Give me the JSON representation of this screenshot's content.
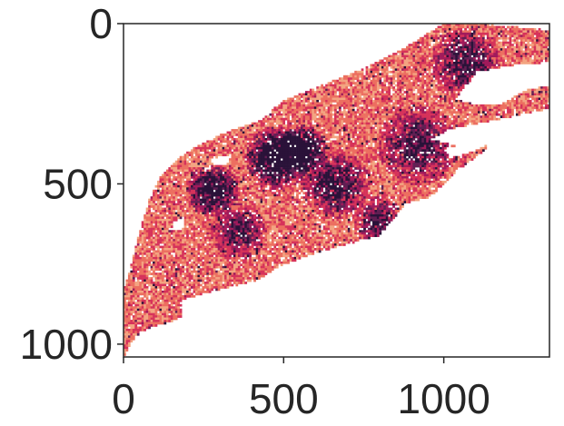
{
  "chart_data": {
    "type": "heatmap",
    "title": "",
    "xlabel": "",
    "ylabel": "",
    "xlim": [
      0,
      1330
    ],
    "ylim": [
      1040,
      0
    ],
    "x_ticks": [
      0,
      500,
      1000
    ],
    "y_ticks": [
      0,
      500,
      1000
    ],
    "x_tick_labels": [
      "0",
      "500",
      "1000"
    ],
    "y_tick_labels": [
      "0",
      "500",
      "1000"
    ],
    "grid": false,
    "colormap": "rocket",
    "colormap_stops": [
      "#f6d6b0",
      "#f3a481",
      "#ec6f60",
      "#d6325a",
      "#a11a5b",
      "#611f53",
      "#2a1239"
    ],
    "region_outline": [
      [
        0,
        1040
      ],
      [
        20,
        1000
      ],
      [
        55,
        960
      ],
      [
        110,
        940
      ],
      [
        185,
        920
      ],
      [
        185,
        860
      ],
      [
        300,
        830
      ],
      [
        420,
        800
      ],
      [
        480,
        760
      ],
      [
        600,
        715
      ],
      [
        800,
        660
      ],
      [
        850,
        600
      ],
      [
        880,
        560
      ],
      [
        960,
        540
      ],
      [
        1000,
        500
      ],
      [
        1060,
        445
      ],
      [
        1140,
        385
      ],
      [
        1115,
        370
      ],
      [
        1050,
        385
      ],
      [
        960,
        360
      ],
      [
        1015,
        330
      ],
      [
        1210,
        290
      ],
      [
        1330,
        265
      ],
      [
        1330,
        195
      ],
      [
        1260,
        205
      ],
      [
        1180,
        250
      ],
      [
        1105,
        255
      ],
      [
        1035,
        235
      ],
      [
        1105,
        150
      ],
      [
        1210,
        130
      ],
      [
        1330,
        120
      ],
      [
        1330,
        20
      ],
      [
        1120,
        0
      ],
      [
        1000,
        0
      ],
      [
        860,
        85
      ],
      [
        725,
        150
      ],
      [
        600,
        200
      ],
      [
        500,
        240
      ],
      [
        420,
        305
      ],
      [
        330,
        335
      ],
      [
        230,
        380
      ],
      [
        170,
        420
      ],
      [
        120,
        470
      ],
      [
        80,
        550
      ],
      [
        50,
        650
      ],
      [
        20,
        770
      ],
      [
        0,
        830
      ]
    ],
    "holes": [
      [
        [
          1000,
          390
        ],
        [
          1080,
          375
        ],
        [
          1120,
          335
        ],
        [
          1210,
          300
        ],
        [
          1190,
          355
        ],
        [
          1100,
          395
        ],
        [
          1020,
          420
        ]
      ],
      [
        [
          270,
          420
        ],
        [
          340,
          410
        ],
        [
          320,
          440
        ],
        [
          280,
          440
        ]
      ],
      [
        [
          150,
          620
        ],
        [
          190,
          600
        ],
        [
          185,
          640
        ],
        [
          155,
          645
        ]
      ]
    ],
    "dark_clusters": [
      {
        "x": 480,
        "y": 420,
        "r": 55,
        "weight": 0.95
      },
      {
        "x": 560,
        "y": 390,
        "r": 40,
        "weight": 0.9
      },
      {
        "x": 280,
        "y": 520,
        "r": 45,
        "weight": 0.8
      },
      {
        "x": 660,
        "y": 500,
        "r": 60,
        "weight": 0.6
      },
      {
        "x": 920,
        "y": 380,
        "r": 70,
        "weight": 0.55
      },
      {
        "x": 1070,
        "y": 120,
        "r": 60,
        "weight": 0.6
      },
      {
        "x": 360,
        "y": 650,
        "r": 50,
        "weight": 0.5
      },
      {
        "x": 800,
        "y": 620,
        "r": 45,
        "weight": 0.55
      }
    ]
  }
}
